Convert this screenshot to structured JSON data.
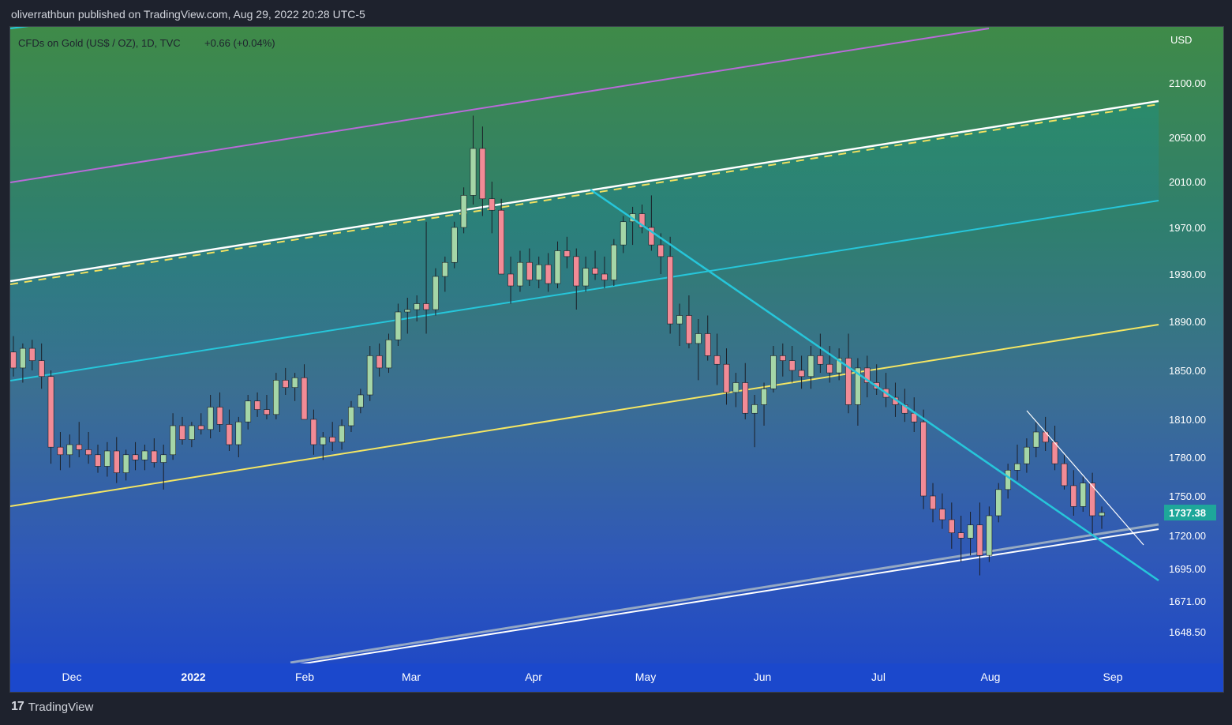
{
  "header": {
    "published": "oliverrathbun published on TradingView.com, Aug 29, 2022 20:28 UTC-5"
  },
  "chart_data": {
    "type": "candlestick",
    "legend": {
      "symbol": "CFDs on Gold (US$ / OZ), 1D, TVC",
      "change": "+0.66 (+0.04%)"
    },
    "currency": "USD",
    "last_price": "1737.38",
    "y_axis": {
      "ticks": [
        "2100.00",
        "2050.00",
        "2010.00",
        "1970.00",
        "1930.00",
        "1890.00",
        "1850.00",
        "1810.00",
        "1780.00",
        "1750.00",
        "1720.00",
        "1695.00",
        "1671.00",
        "1648.50"
      ]
    },
    "x_axis": {
      "ticks": [
        "Dec",
        "2022",
        "Feb",
        "Mar",
        "Apr",
        "May",
        "Jun",
        "Jul",
        "Aug",
        "Sep"
      ]
    },
    "ohlc_approx": [
      [
        1865,
        1878,
        1845,
        1852
      ],
      [
        1852,
        1872,
        1840,
        1868
      ],
      [
        1868,
        1875,
        1850,
        1858
      ],
      [
        1858,
        1872,
        1835,
        1845
      ],
      [
        1845,
        1850,
        1775,
        1788
      ],
      [
        1788,
        1800,
        1770,
        1782
      ],
      [
        1782,
        1798,
        1772,
        1790
      ],
      [
        1790,
        1808,
        1780,
        1786
      ],
      [
        1786,
        1800,
        1775,
        1782
      ],
      [
        1782,
        1790,
        1768,
        1773
      ],
      [
        1773,
        1792,
        1765,
        1785
      ],
      [
        1785,
        1796,
        1760,
        1768
      ],
      [
        1768,
        1786,
        1762,
        1782
      ],
      [
        1782,
        1792,
        1770,
        1778
      ],
      [
        1778,
        1790,
        1770,
        1785
      ],
      [
        1785,
        1795,
        1772,
        1776
      ],
      [
        1776,
        1790,
        1755,
        1782
      ],
      [
        1782,
        1815,
        1778,
        1805
      ],
      [
        1805,
        1812,
        1790,
        1794
      ],
      [
        1794,
        1808,
        1788,
        1805
      ],
      [
        1805,
        1815,
        1798,
        1802
      ],
      [
        1802,
        1830,
        1795,
        1820
      ],
      [
        1820,
        1832,
        1800,
        1806
      ],
      [
        1806,
        1818,
        1785,
        1790
      ],
      [
        1790,
        1812,
        1780,
        1808
      ],
      [
        1808,
        1830,
        1802,
        1825
      ],
      [
        1825,
        1832,
        1812,
        1818
      ],
      [
        1818,
        1830,
        1810,
        1814
      ],
      [
        1814,
        1848,
        1810,
        1842
      ],
      [
        1842,
        1852,
        1830,
        1836
      ],
      [
        1836,
        1848,
        1825,
        1844
      ],
      [
        1844,
        1855,
        1822,
        1810
      ],
      [
        1810,
        1818,
        1782,
        1790
      ],
      [
        1790,
        1800,
        1778,
        1796
      ],
      [
        1796,
        1808,
        1785,
        1792
      ],
      [
        1792,
        1810,
        1786,
        1805
      ],
      [
        1805,
        1825,
        1800,
        1820
      ],
      [
        1820,
        1835,
        1815,
        1830
      ],
      [
        1830,
        1870,
        1825,
        1862
      ],
      [
        1862,
        1872,
        1845,
        1852
      ],
      [
        1852,
        1880,
        1848,
        1875
      ],
      [
        1875,
        1905,
        1870,
        1898
      ],
      [
        1898,
        1910,
        1880,
        1900
      ],
      [
        1900,
        1912,
        1890,
        1905
      ],
      [
        1905,
        1975,
        1880,
        1900
      ],
      [
        1900,
        1935,
        1895,
        1928
      ],
      [
        1928,
        1945,
        1915,
        1940
      ],
      [
        1940,
        1975,
        1935,
        1970
      ],
      [
        1970,
        2005,
        1965,
        1998
      ],
      [
        1998,
        2070,
        1990,
        2040
      ],
      [
        2040,
        2060,
        1980,
        1995
      ],
      [
        1995,
        2010,
        1965,
        1985
      ],
      [
        1985,
        1995,
        1930,
        1930
      ],
      [
        1930,
        1945,
        1905,
        1920
      ],
      [
        1920,
        1950,
        1915,
        1940
      ],
      [
        1940,
        1952,
        1920,
        1925
      ],
      [
        1925,
        1945,
        1918,
        1938
      ],
      [
        1938,
        1948,
        1915,
        1922
      ],
      [
        1922,
        1958,
        1918,
        1950
      ],
      [
        1950,
        1962,
        1935,
        1945
      ],
      [
        1945,
        1952,
        1900,
        1920
      ],
      [
        1920,
        1945,
        1915,
        1935
      ],
      [
        1935,
        1950,
        1925,
        1930
      ],
      [
        1930,
        1945,
        1918,
        1925
      ],
      [
        1925,
        1960,
        1920,
        1955
      ],
      [
        1955,
        1980,
        1948,
        1975
      ],
      [
        1975,
        1988,
        1955,
        1982
      ],
      [
        1982,
        1990,
        1965,
        1970
      ],
      [
        1970,
        1998,
        1950,
        1955
      ],
      [
        1955,
        1965,
        1930,
        1945
      ],
      [
        1945,
        1962,
        1880,
        1888
      ],
      [
        1888,
        1905,
        1870,
        1895
      ],
      [
        1895,
        1912,
        1868,
        1872
      ],
      [
        1872,
        1892,
        1842,
        1880
      ],
      [
        1880,
        1895,
        1858,
        1862
      ],
      [
        1862,
        1880,
        1838,
        1855
      ],
      [
        1855,
        1868,
        1822,
        1832
      ],
      [
        1832,
        1848,
        1820,
        1840
      ],
      [
        1840,
        1856,
        1810,
        1815
      ],
      [
        1815,
        1830,
        1788,
        1822
      ],
      [
        1822,
        1840,
        1805,
        1835
      ],
      [
        1835,
        1870,
        1832,
        1862
      ],
      [
        1862,
        1872,
        1845,
        1858
      ],
      [
        1858,
        1870,
        1840,
        1850
      ],
      [
        1850,
        1862,
        1835,
        1845
      ],
      [
        1845,
        1870,
        1835,
        1862
      ],
      [
        1862,
        1880,
        1848,
        1855
      ],
      [
        1855,
        1870,
        1840,
        1848
      ],
      [
        1848,
        1868,
        1842,
        1860
      ],
      [
        1860,
        1880,
        1815,
        1822
      ],
      [
        1822,
        1860,
        1805,
        1852
      ],
      [
        1852,
        1862,
        1828,
        1840
      ],
      [
        1840,
        1855,
        1830,
        1835
      ],
      [
        1835,
        1848,
        1820,
        1828
      ],
      [
        1828,
        1840,
        1812,
        1822
      ],
      [
        1822,
        1835,
        1808,
        1815
      ],
      [
        1815,
        1828,
        1800,
        1808
      ],
      [
        1808,
        1818,
        1740,
        1750
      ],
      [
        1750,
        1760,
        1730,
        1740
      ],
      [
        1740,
        1752,
        1725,
        1732
      ],
      [
        1732,
        1745,
        1710,
        1722
      ],
      [
        1722,
        1735,
        1700,
        1718
      ],
      [
        1718,
        1738,
        1705,
        1728
      ],
      [
        1728,
        1745,
        1690,
        1705
      ],
      [
        1705,
        1742,
        1700,
        1735
      ],
      [
        1735,
        1760,
        1730,
        1755
      ],
      [
        1755,
        1775,
        1748,
        1770
      ],
      [
        1770,
        1790,
        1762,
        1775
      ],
      [
        1775,
        1795,
        1768,
        1788
      ],
      [
        1788,
        1808,
        1780,
        1800
      ],
      [
        1800,
        1812,
        1785,
        1792
      ],
      [
        1792,
        1805,
        1770,
        1775
      ],
      [
        1775,
        1782,
        1755,
        1758
      ],
      [
        1758,
        1770,
        1735,
        1742
      ],
      [
        1742,
        1765,
        1738,
        1760
      ],
      [
        1760,
        1768,
        1720,
        1735
      ],
      [
        1735,
        1742,
        1725,
        1737.38
      ]
    ],
    "colors": {
      "up": "#a5d6a7",
      "down": "#f28b96",
      "wick": "#1b1f27"
    }
  },
  "footer": {
    "logo": "17",
    "brand": "TradingView"
  }
}
